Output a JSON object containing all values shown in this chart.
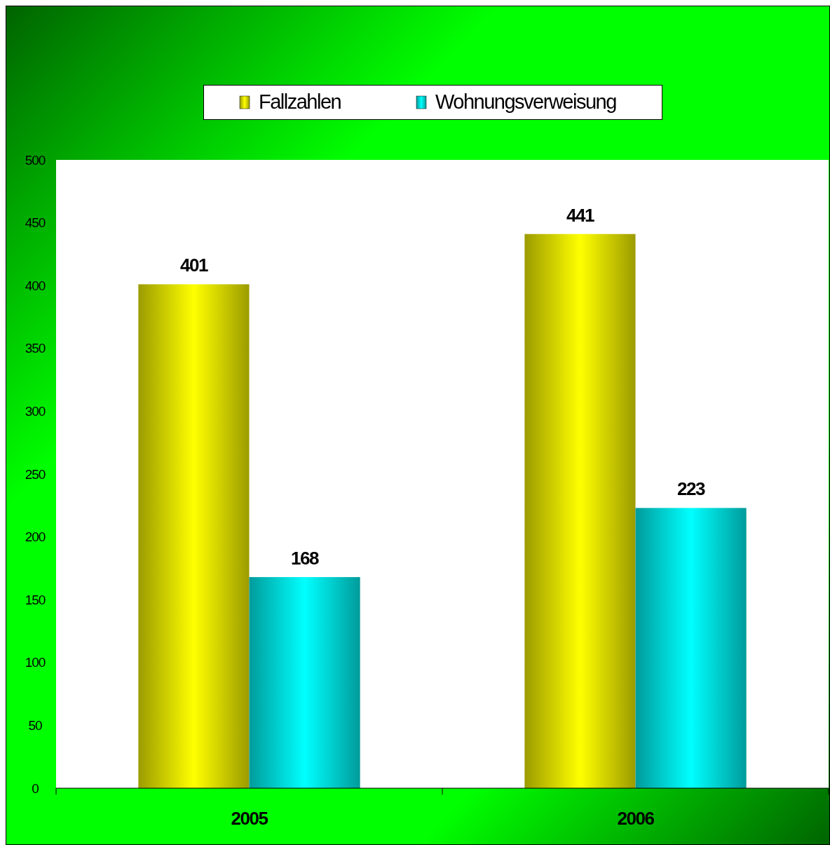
{
  "chart_data": {
    "type": "bar",
    "categories": [
      "2005",
      "2006"
    ],
    "series": [
      {
        "name": "Fallzahlen",
        "color": "#ffff00",
        "values": [
          401,
          441
        ]
      },
      {
        "name": "Wohnungsverweisung",
        "color": "#00ffff",
        "values": [
          168,
          223
        ]
      }
    ],
    "ylim": [
      0,
      500
    ],
    "yticks": [
      0,
      50,
      100,
      150,
      200,
      250,
      300,
      350,
      400,
      450,
      500
    ],
    "grid": false,
    "legend": "top",
    "data_labels": true
  }
}
